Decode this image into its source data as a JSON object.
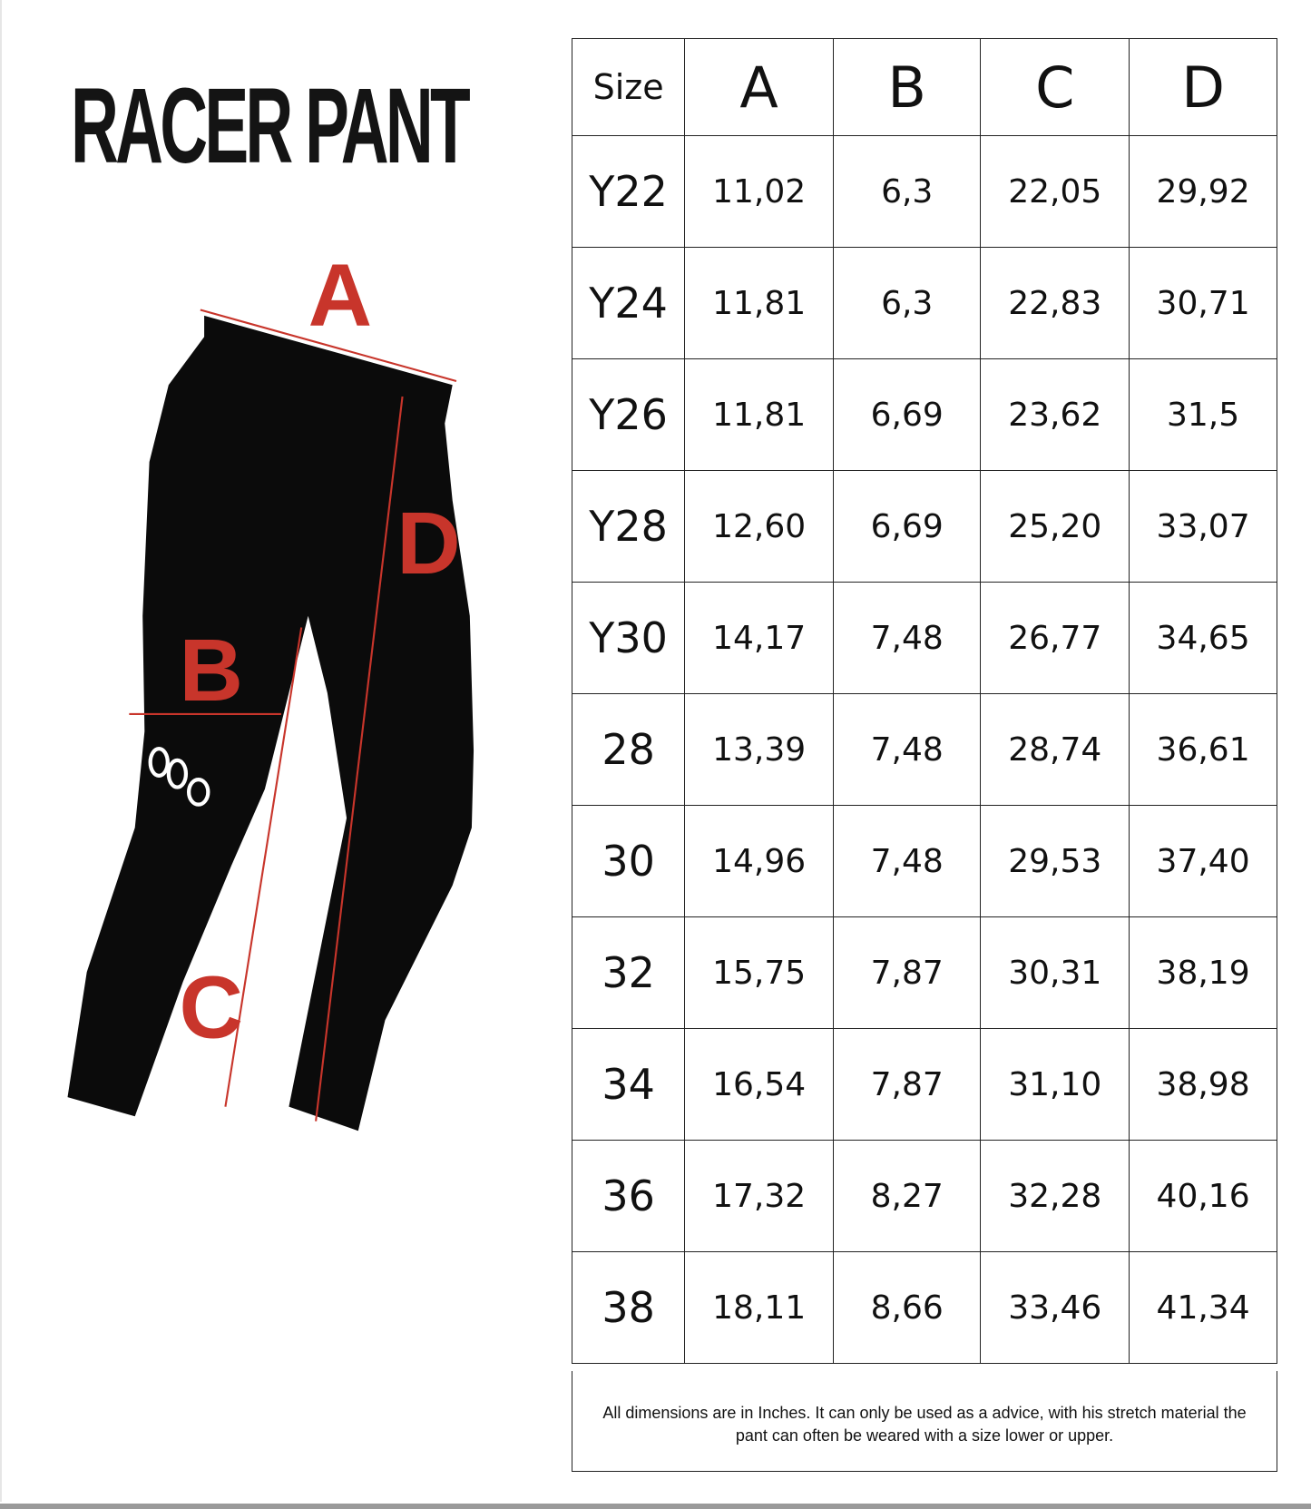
{
  "title": "RACER PANT",
  "colors": {
    "accent": "#c8352b",
    "text": "#141414"
  },
  "diagram_labels": [
    "A",
    "B",
    "C",
    "D"
  ],
  "table": {
    "headers": [
      "Size",
      "A",
      "B",
      "C",
      "D"
    ],
    "rows": [
      [
        "Y22",
        "11,02",
        "6,3",
        "22,05",
        "29,92"
      ],
      [
        "Y24",
        "11,81",
        "6,3",
        "22,83",
        "30,71"
      ],
      [
        "Y26",
        "11,81",
        "6,69",
        "23,62",
        "31,5"
      ],
      [
        "Y28",
        "12,60",
        "6,69",
        "25,20",
        "33,07"
      ],
      [
        "Y30",
        "14,17",
        "7,48",
        "26,77",
        "34,65"
      ],
      [
        "28",
        "13,39",
        "7,48",
        "28,74",
        "36,61"
      ],
      [
        "30",
        "14,96",
        "7,48",
        "29,53",
        "37,40"
      ],
      [
        "32",
        "15,75",
        "7,87",
        "30,31",
        "38,19"
      ],
      [
        "34",
        "16,54",
        "7,87",
        "31,10",
        "38,98"
      ],
      [
        "36",
        "17,32",
        "8,27",
        "32,28",
        "40,16"
      ],
      [
        "38",
        "18,11",
        "8,66",
        "33,46",
        "41,34"
      ]
    ]
  },
  "note": "All dimensions are in Inches. It can only be used as a advice, with his stretch material the pant can often be weared with a size lower or upper."
}
